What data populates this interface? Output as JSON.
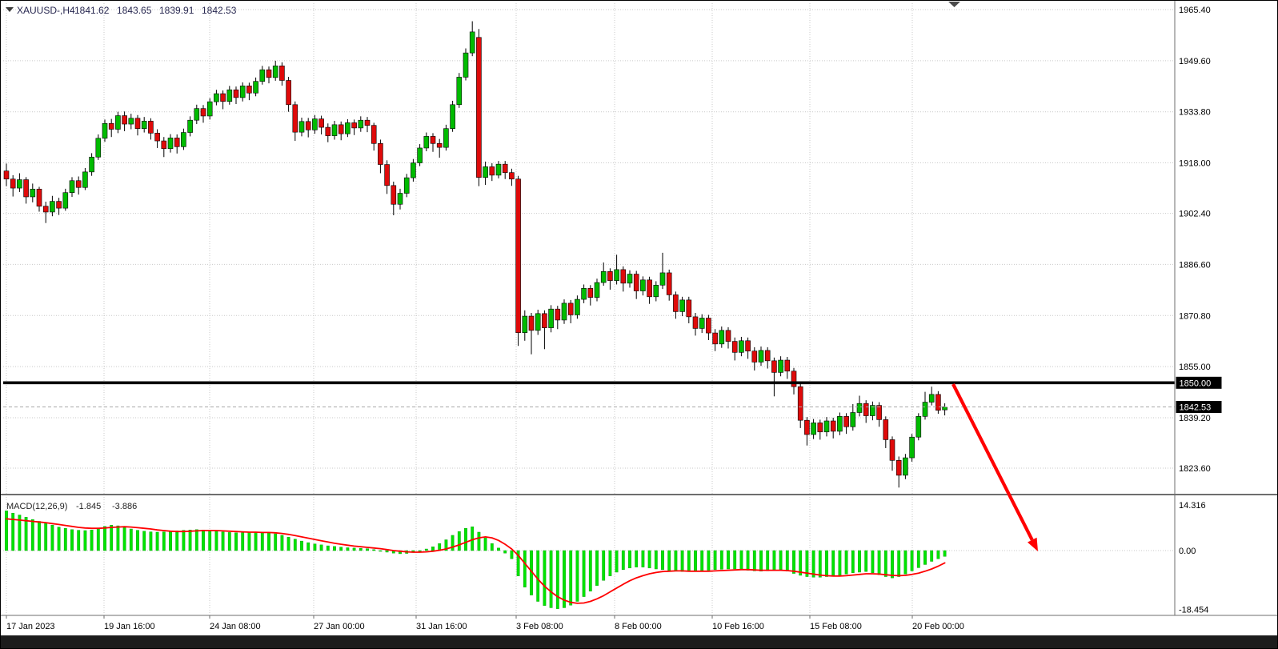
{
  "header": {
    "symbol_timeframe": "XAUUSD-,H4",
    "open": "1841.62",
    "high": "1843.65",
    "low": "1839.91",
    "close": "1842.53"
  },
  "indicator_label": {
    "name": "MACD(12,26,9)",
    "main": "-1.845",
    "signal": "-3.886"
  },
  "price_axis": {
    "labels": [
      "1965.40",
      "1949.60",
      "1933.80",
      "1918.00",
      "1902.40",
      "1886.60",
      "1870.80",
      "1855.00",
      "1839.20",
      "1823.60"
    ],
    "level_label": "1850.00",
    "bid_label": "1842.53"
  },
  "macd_axis": {
    "top": "14.316",
    "zero": "0.00",
    "bottom": "-18.454"
  },
  "time_axis": {
    "labels": [
      "17 Jan 2023",
      "19 Jan 16:00",
      "24 Jan 08:00",
      "27 Jan 00:00",
      "31 Jan 16:00",
      "3 Feb 08:00",
      "8 Feb 00:00",
      "10 Feb 16:00",
      "15 Feb 08:00",
      "20 Feb 00:00"
    ]
  },
  "colors": {
    "bull": "#00BB00",
    "bear": "#DF0A0A",
    "wick": "#000000",
    "macd_hist": "#00E400",
    "macd_hist_edge": "#009900",
    "macd_signal": "#FF0000",
    "grid": "#C9C9C9",
    "axis_line": "#6E6E6E",
    "level_line": "#000000",
    "bid_line": "#A8A8A8",
    "arrow": "#FF0000",
    "bottom_bar": "#1C1C1C",
    "label_box": "#000000"
  },
  "chart_data": [
    {
      "type": "candlestick",
      "title": "XAUUSD- H4",
      "x_axis_labels": [
        "17 Jan 2023",
        "19 Jan 16:00",
        "24 Jan 08:00",
        "27 Jan 00:00",
        "31 Jan 16:00",
        "3 Feb 08:00",
        "8 Feb 00:00",
        "10 Feb 16:00",
        "15 Feb 08:00",
        "20 Feb 00:00"
      ],
      "y_axis_ticks": [
        1965.4,
        1949.6,
        1933.8,
        1918.0,
        1902.4,
        1886.6,
        1870.8,
        1855.0,
        1839.2,
        1823.6
      ],
      "ylim": [
        1815.0,
        1968.0
      ],
      "grid": true,
      "annotations": {
        "resistance_line": {
          "price": 1850.0,
          "color": "#000000",
          "style": "solid-thick"
        },
        "bid_line": {
          "price": 1842.53,
          "color": "#A8A8A8",
          "style": "dashed"
        },
        "arrow": {
          "color": "#FF0000",
          "direction": "down-right"
        }
      },
      "ohlc": [
        [
          1915.5,
          1917.8,
          1910.8,
          1913.0
        ],
        [
          1913.0,
          1914.2,
          1907.6,
          1910.2
        ],
        [
          1910.2,
          1914.8,
          1909.0,
          1912.8
        ],
        [
          1912.8,
          1913.6,
          1905.4,
          1907.5
        ],
        [
          1907.5,
          1911.6,
          1905.8,
          1909.9
        ],
        [
          1909.9,
          1910.6,
          1902.9,
          1904.6
        ],
        [
          1904.6,
          1906.0,
          1899.4,
          1902.8
        ],
        [
          1902.8,
          1907.8,
          1901.5,
          1906.1
        ],
        [
          1906.1,
          1907.2,
          1901.9,
          1904.0
        ],
        [
          1904.0,
          1910.0,
          1903.2,
          1908.8
        ],
        [
          1908.8,
          1913.6,
          1907.5,
          1912.5
        ],
        [
          1912.5,
          1913.8,
          1908.2,
          1910.4
        ],
        [
          1910.4,
          1916.4,
          1909.6,
          1915.2
        ],
        [
          1915.2,
          1921.0,
          1914.0,
          1919.8
        ],
        [
          1919.8,
          1926.8,
          1918.9,
          1925.6
        ],
        [
          1925.6,
          1931.4,
          1924.5,
          1930.2
        ],
        [
          1930.2,
          1931.6,
          1926.0,
          1928.4
        ],
        [
          1928.4,
          1933.8,
          1927.2,
          1932.6
        ],
        [
          1932.6,
          1933.9,
          1927.8,
          1930.0
        ],
        [
          1930.0,
          1933.2,
          1928.4,
          1931.8
        ],
        [
          1931.8,
          1932.8,
          1926.5,
          1928.6
        ],
        [
          1928.6,
          1932.2,
          1927.4,
          1930.9
        ],
        [
          1930.9,
          1931.8,
          1925.2,
          1927.2
        ],
        [
          1927.2,
          1928.4,
          1922.6,
          1924.8
        ],
        [
          1924.8,
          1926.0,
          1919.8,
          1922.4
        ],
        [
          1922.4,
          1926.9,
          1921.2,
          1925.7
        ],
        [
          1925.7,
          1926.8,
          1920.9,
          1923.0
        ],
        [
          1923.0,
          1928.6,
          1922.0,
          1927.4
        ],
        [
          1927.4,
          1932.4,
          1926.2,
          1931.2
        ],
        [
          1931.2,
          1936.0,
          1930.0,
          1934.8
        ],
        [
          1934.8,
          1935.9,
          1930.4,
          1932.5
        ],
        [
          1932.5,
          1938.0,
          1931.4,
          1936.9
        ],
        [
          1936.9,
          1940.6,
          1935.8,
          1939.4
        ],
        [
          1939.4,
          1940.4,
          1934.6,
          1937.0
        ],
        [
          1937.0,
          1941.8,
          1936.0,
          1940.6
        ],
        [
          1940.6,
          1941.6,
          1936.2,
          1938.2
        ],
        [
          1938.2,
          1942.9,
          1937.0,
          1941.8
        ],
        [
          1941.8,
          1942.8,
          1937.4,
          1939.6
        ],
        [
          1939.6,
          1944.4,
          1938.6,
          1943.2
        ],
        [
          1943.2,
          1948.0,
          1942.2,
          1946.8
        ],
        [
          1946.8,
          1947.8,
          1942.6,
          1944.4
        ],
        [
          1944.4,
          1949.6,
          1943.4,
          1948.0
        ],
        [
          1948.0,
          1949.1,
          1941.9,
          1943.5
        ],
        [
          1943.5,
          1944.6,
          1933.8,
          1936.0
        ],
        [
          1936.0,
          1937.0,
          1924.8,
          1927.5
        ],
        [
          1927.5,
          1932.0,
          1926.2,
          1930.8
        ],
        [
          1930.8,
          1931.9,
          1925.9,
          1928.2
        ],
        [
          1928.2,
          1932.8,
          1927.0,
          1931.6
        ],
        [
          1931.6,
          1932.6,
          1926.8,
          1929.0
        ],
        [
          1929.0,
          1930.2,
          1924.4,
          1926.4
        ],
        [
          1926.4,
          1931.0,
          1925.2,
          1929.8
        ],
        [
          1929.8,
          1930.8,
          1925.0,
          1927.0
        ],
        [
          1927.0,
          1931.5,
          1926.0,
          1930.4
        ],
        [
          1930.4,
          1931.4,
          1926.6,
          1928.8
        ],
        [
          1928.8,
          1932.4,
          1927.6,
          1931.2
        ],
        [
          1931.2,
          1932.2,
          1927.5,
          1929.6
        ],
        [
          1929.6,
          1930.4,
          1921.8,
          1924.0
        ],
        [
          1924.0,
          1925.2,
          1914.8,
          1917.5
        ],
        [
          1917.5,
          1918.8,
          1908.4,
          1911.0
        ],
        [
          1911.0,
          1912.2,
          1901.8,
          1905.2
        ],
        [
          1905.2,
          1910.0,
          1903.6,
          1908.6
        ],
        [
          1908.6,
          1914.6,
          1907.4,
          1913.4
        ],
        [
          1913.4,
          1919.2,
          1912.2,
          1918.0
        ],
        [
          1918.0,
          1923.8,
          1917.0,
          1922.6
        ],
        [
          1922.6,
          1927.4,
          1921.6,
          1926.2
        ],
        [
          1926.2,
          1927.2,
          1921.4,
          1924.0
        ],
        [
          1924.0,
          1925.4,
          1919.6,
          1922.8
        ],
        [
          1922.8,
          1929.8,
          1921.8,
          1928.6
        ],
        [
          1928.6,
          1937.2,
          1927.6,
          1936.0
        ],
        [
          1936.0,
          1945.8,
          1935.0,
          1944.5
        ],
        [
          1944.5,
          1953.4,
          1943.5,
          1952.0
        ],
        [
          1952.0,
          1961.8,
          1951.0,
          1958.5
        ],
        [
          1956.8,
          1959.4,
          1910.8,
          1913.5
        ],
        [
          1913.5,
          1918.4,
          1911.2,
          1916.8
        ],
        [
          1916.8,
          1917.9,
          1912.4,
          1914.2
        ],
        [
          1914.2,
          1918.6,
          1913.2,
          1917.6
        ],
        [
          1917.6,
          1918.6,
          1913.0,
          1915.0
        ],
        [
          1915.0,
          1916.2,
          1910.9,
          1913.0
        ],
        [
          1913.0,
          1914.0,
          1861.4,
          1865.5
        ],
        [
          1865.5,
          1872.4,
          1863.0,
          1870.6
        ],
        [
          1870.6,
          1871.6,
          1858.8,
          1866.2
        ],
        [
          1866.2,
          1872.6,
          1864.8,
          1871.4
        ],
        [
          1871.4,
          1872.4,
          1860.4,
          1867.0
        ],
        [
          1867.0,
          1874.0,
          1865.6,
          1872.8
        ],
        [
          1872.8,
          1873.8,
          1866.6,
          1869.4
        ],
        [
          1869.4,
          1875.8,
          1868.2,
          1874.6
        ],
        [
          1874.6,
          1875.6,
          1868.4,
          1871.0
        ],
        [
          1871.0,
          1877.0,
          1869.8,
          1875.8
        ],
        [
          1875.8,
          1880.4,
          1874.6,
          1879.2
        ],
        [
          1879.2,
          1880.2,
          1873.9,
          1876.4
        ],
        [
          1876.4,
          1882.2,
          1875.2,
          1881.0
        ],
        [
          1881.0,
          1887.2,
          1880.0,
          1884.4
        ],
        [
          1884.4,
          1885.4,
          1878.8,
          1881.6
        ],
        [
          1881.6,
          1889.6,
          1880.4,
          1885.0
        ],
        [
          1885.0,
          1886.0,
          1878.2,
          1880.8
        ],
        [
          1880.8,
          1884.8,
          1879.4,
          1883.6
        ],
        [
          1883.6,
          1884.6,
          1875.9,
          1878.4
        ],
        [
          1878.4,
          1882.9,
          1877.0,
          1881.8
        ],
        [
          1881.8,
          1882.8,
          1874.4,
          1876.6
        ],
        [
          1876.6,
          1881.4,
          1875.2,
          1880.2
        ],
        [
          1880.2,
          1890.2,
          1879.0,
          1884.0
        ],
        [
          1884.0,
          1885.0,
          1875.4,
          1877.2
        ],
        [
          1877.2,
          1878.2,
          1869.8,
          1872.0
        ],
        [
          1872.0,
          1876.6,
          1870.6,
          1875.6
        ],
        [
          1875.6,
          1876.6,
          1868.4,
          1870.4
        ],
        [
          1870.4,
          1871.6,
          1864.6,
          1866.8
        ],
        [
          1866.8,
          1871.2,
          1865.4,
          1870.0
        ],
        [
          1870.0,
          1871.0,
          1863.2,
          1865.4
        ],
        [
          1865.4,
          1866.6,
          1859.8,
          1862.0
        ],
        [
          1862.0,
          1867.4,
          1860.8,
          1866.2
        ],
        [
          1866.2,
          1867.2,
          1860.6,
          1862.8
        ],
        [
          1862.8,
          1864.0,
          1856.9,
          1859.4
        ],
        [
          1859.4,
          1864.2,
          1858.2,
          1863.0
        ],
        [
          1863.0,
          1864.0,
          1857.4,
          1859.8
        ],
        [
          1859.8,
          1861.0,
          1853.8,
          1856.4
        ],
        [
          1856.4,
          1861.2,
          1855.2,
          1860.0
        ],
        [
          1860.0,
          1861.0,
          1854.4,
          1856.8
        ],
        [
          1856.8,
          1857.8,
          1845.8,
          1853.2
        ],
        [
          1853.2,
          1858.2,
          1852.0,
          1857.0
        ],
        [
          1857.0,
          1858.0,
          1851.2,
          1853.6
        ],
        [
          1853.6,
          1854.6,
          1846.4,
          1848.8
        ],
        [
          1848.8,
          1849.8,
          1836.0,
          1838.4
        ],
        [
          1838.4,
          1839.4,
          1830.6,
          1834.0
        ],
        [
          1834.0,
          1838.8,
          1832.6,
          1837.6
        ],
        [
          1837.6,
          1838.6,
          1832.4,
          1834.8
        ],
        [
          1834.8,
          1839.4,
          1833.4,
          1838.2
        ],
        [
          1838.2,
          1839.2,
          1832.8,
          1835.0
        ],
        [
          1835.0,
          1840.8,
          1833.8,
          1839.6
        ],
        [
          1839.6,
          1840.6,
          1834.2,
          1836.4
        ],
        [
          1836.4,
          1843.4,
          1835.2,
          1840.8
        ],
        [
          1840.8,
          1846.0,
          1839.6,
          1843.6
        ],
        [
          1843.6,
          1844.6,
          1837.6,
          1839.8
        ],
        [
          1839.8,
          1844.2,
          1838.4,
          1843.0
        ],
        [
          1843.0,
          1844.0,
          1836.4,
          1838.6
        ],
        [
          1838.6,
          1839.6,
          1829.8,
          1832.4
        ],
        [
          1832.4,
          1833.4,
          1822.8,
          1826.0
        ],
        [
          1826.0,
          1827.2,
          1817.6,
          1821.4
        ],
        [
          1821.4,
          1828.0,
          1820.2,
          1826.8
        ],
        [
          1826.8,
          1834.2,
          1825.6,
          1833.2
        ],
        [
          1833.2,
          1840.6,
          1832.2,
          1839.6
        ],
        [
          1839.6,
          1847.2,
          1838.6,
          1844.0
        ],
        [
          1844.0,
          1848.8,
          1843.0,
          1846.4
        ],
        [
          1846.4,
          1847.4,
          1840.4,
          1841.5
        ],
        [
          1841.62,
          1843.65,
          1839.91,
          1842.53
        ]
      ]
    },
    {
      "type": "bar",
      "name": "MACD(12,26,9)",
      "current_main": -1.845,
      "current_signal": -3.886,
      "ylim": [
        -18.454,
        14.316
      ],
      "histogram": [
        12.5,
        11.8,
        11.2,
        10.5,
        9.8,
        9.2,
        8.6,
        8.0,
        7.4,
        7.0,
        6.6,
        6.4,
        6.3,
        6.5,
        7.0,
        7.6,
        8.0,
        7.8,
        7.3,
        6.8,
        6.4,
        6.1,
        5.9,
        5.8,
        5.9,
        6.0,
        6.2,
        6.4,
        6.5,
        6.6,
        6.5,
        6.3,
        6.1,
        5.9,
        5.7,
        5.6,
        5.6,
        5.7,
        5.8,
        5.8,
        5.6,
        5.3,
        4.8,
        4.2,
        3.6,
        3.0,
        2.5,
        2.1,
        1.8,
        1.5,
        1.3,
        1.1,
        0.9,
        0.8,
        0.7,
        0.6,
        0.3,
        -0.1,
        -0.5,
        -0.8,
        -1.0,
        -0.9,
        -0.6,
        -0.2,
        0.5,
        1.2,
        2.2,
        3.4,
        4.8,
        6.0,
        7.0,
        7.5,
        5.8,
        4.0,
        2.2,
        0.8,
        -0.8,
        -2.6,
        -8.0,
        -11.5,
        -14.0,
        -16.0,
        -17.3,
        -18.0,
        -18.3,
        -18.0,
        -17.2,
        -16.0,
        -14.5,
        -12.8,
        -11.0,
        -9.4,
        -8.0,
        -6.8,
        -6.0,
        -5.5,
        -5.2,
        -5.2,
        -5.5,
        -5.8,
        -6.0,
        -6.3,
        -6.5,
        -6.6,
        -6.6,
        -6.5,
        -6.4,
        -6.2,
        -6.0,
        -5.9,
        -5.8,
        -5.8,
        -6.0,
        -6.2,
        -6.4,
        -6.5,
        -6.4,
        -6.2,
        -6.0,
        -6.5,
        -7.2,
        -7.8,
        -8.2,
        -8.4,
        -8.4,
        -8.2,
        -8.0,
        -7.8,
        -7.4,
        -7.0,
        -6.8,
        -6.6,
        -7.0,
        -7.6,
        -8.2,
        -8.6,
        -8.2,
        -7.4,
        -6.4,
        -5.4,
        -4.4,
        -3.4,
        -2.6,
        -1.845
      ],
      "signal": [
        10.0,
        9.8,
        9.6,
        9.4,
        9.2,
        9.0,
        8.8,
        8.5,
        8.2,
        7.9,
        7.6,
        7.3,
        7.1,
        7.0,
        7.0,
        7.1,
        7.3,
        7.4,
        7.5,
        7.4,
        7.2,
        7.0,
        6.8,
        6.5,
        6.3,
        6.1,
        6.0,
        6.0,
        6.1,
        6.2,
        6.3,
        6.3,
        6.3,
        6.2,
        6.1,
        6.0,
        5.9,
        5.8,
        5.8,
        5.7,
        5.7,
        5.6,
        5.4,
        5.1,
        4.7,
        4.3,
        3.9,
        3.5,
        3.1,
        2.7,
        2.3,
        2.0,
        1.7,
        1.4,
        1.2,
        1.0,
        0.8,
        0.6,
        0.3,
        0.0,
        -0.2,
        -0.4,
        -0.5,
        -0.5,
        -0.4,
        -0.2,
        0.1,
        0.5,
        1.1,
        1.8,
        2.6,
        3.4,
        4.0,
        4.3,
        4.0,
        3.2,
        2.0,
        0.5,
        -1.5,
        -4.0,
        -6.5,
        -9.0,
        -11.2,
        -13.0,
        -14.5,
        -15.6,
        -16.3,
        -16.6,
        -16.5,
        -16.0,
        -15.2,
        -14.2,
        -13.0,
        -11.8,
        -10.6,
        -9.5,
        -8.6,
        -7.9,
        -7.3,
        -6.9,
        -6.6,
        -6.5,
        -6.4,
        -6.4,
        -6.5,
        -6.5,
        -6.5,
        -6.5,
        -6.4,
        -6.3,
        -6.2,
        -6.1,
        -6.0,
        -6.0,
        -6.1,
        -6.2,
        -6.2,
        -6.2,
        -6.2,
        -6.3,
        -6.5,
        -6.8,
        -7.1,
        -7.4,
        -7.7,
        -7.9,
        -8.0,
        -8.0,
        -7.9,
        -7.7,
        -7.5,
        -7.3,
        -7.3,
        -7.4,
        -7.6,
        -7.8,
        -7.9,
        -7.8,
        -7.5,
        -7.1,
        -6.5,
        -5.8,
        -4.9,
        -3.886
      ]
    }
  ]
}
